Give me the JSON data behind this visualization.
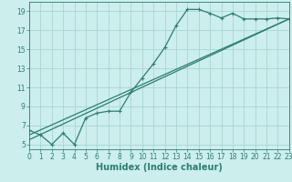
{
  "xlabel": "Humidex (Indice chaleur)",
  "bg_color": "#cceeed",
  "grid_color": "#aad4d0",
  "line_color": "#2e7d6e",
  "line1_x": [
    0,
    1,
    2,
    3,
    4,
    5,
    6,
    7,
    8,
    9,
    10,
    11,
    12,
    13,
    14,
    15,
    16,
    17,
    18,
    19,
    20,
    21,
    22,
    23
  ],
  "line1_y": [
    6.5,
    6.0,
    5.0,
    6.2,
    5.0,
    7.8,
    8.3,
    8.5,
    8.5,
    10.5,
    12.0,
    13.5,
    15.2,
    17.5,
    19.2,
    19.2,
    18.8,
    18.3,
    18.8,
    18.2,
    18.2,
    18.2,
    18.3,
    18.2
  ],
  "line2_x": [
    0,
    23
  ],
  "line2_y": [
    6.0,
    18.2
  ],
  "line3_x": [
    0,
    23
  ],
  "line3_y": [
    5.5,
    18.2
  ],
  "xlim": [
    0,
    23
  ],
  "ylim": [
    4.5,
    20.0
  ],
  "xticks": [
    0,
    1,
    2,
    3,
    4,
    5,
    6,
    7,
    8,
    9,
    10,
    11,
    12,
    13,
    14,
    15,
    16,
    17,
    18,
    19,
    20,
    21,
    22,
    23
  ],
  "yticks": [
    5,
    7,
    9,
    11,
    13,
    15,
    17,
    19
  ],
  "tick_fontsize": 5.5,
  "xlabel_fontsize": 7.0
}
